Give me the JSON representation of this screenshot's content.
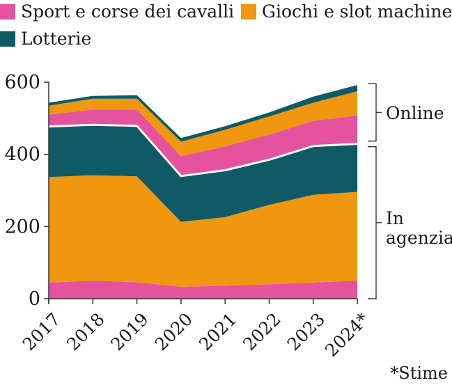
{
  "legend": [
    {
      "label": "Sport e corse dei cavalli",
      "color": "#e5539f"
    },
    {
      "label": "Giochi e slot machine",
      "color": "#f0960f"
    },
    {
      "label": "Lotterie",
      "color": "#0f5a64"
    }
  ],
  "brackets": {
    "online": "Online",
    "agency_line1": "In",
    "agency_line2": "agenzia"
  },
  "footnote": "*Stime",
  "chart_data": {
    "type": "area",
    "stacked": true,
    "x": [
      "2017",
      "2018",
      "2019",
      "2020",
      "2021",
      "2022",
      "2023",
      "2024*"
    ],
    "ylim": [
      0,
      600
    ],
    "yticks": [
      0,
      200,
      400,
      600
    ],
    "series": [
      {
        "name": "Sport e corse dei cavalli (in agenzia)",
        "group": "In agenzia",
        "color": "#e5539f",
        "values": [
          45,
          50,
          46,
          33,
          36,
          40,
          45,
          50
        ]
      },
      {
        "name": "Giochi e slot machine (in agenzia)",
        "group": "In agenzia",
        "color": "#f0960f",
        "values": [
          292,
          292,
          293,
          180,
          190,
          220,
          243,
          246
        ]
      },
      {
        "name": "Lotterie (in agenzia)",
        "group": "In agenzia",
        "color": "#0f5a64",
        "values": [
          140,
          140,
          140,
          127,
          130,
          125,
          135,
          133
        ]
      },
      {
        "name": "Sport e corse dei cavalli (online)",
        "group": "Online",
        "color": "#e5539f",
        "values": [
          33,
          42,
          45,
          55,
          66,
          70,
          70,
          79
        ]
      },
      {
        "name": "Giochi e slot machine (online)",
        "group": "Online",
        "color": "#f0960f",
        "values": [
          25,
          30,
          30,
          40,
          46,
          50,
          50,
          67
        ]
      },
      {
        "name": "Lotterie (online)",
        "group": "Online",
        "color": "#0f5a64",
        "values": [
          8,
          8,
          10,
          10,
          10,
          11,
          17,
          17
        ]
      }
    ]
  }
}
